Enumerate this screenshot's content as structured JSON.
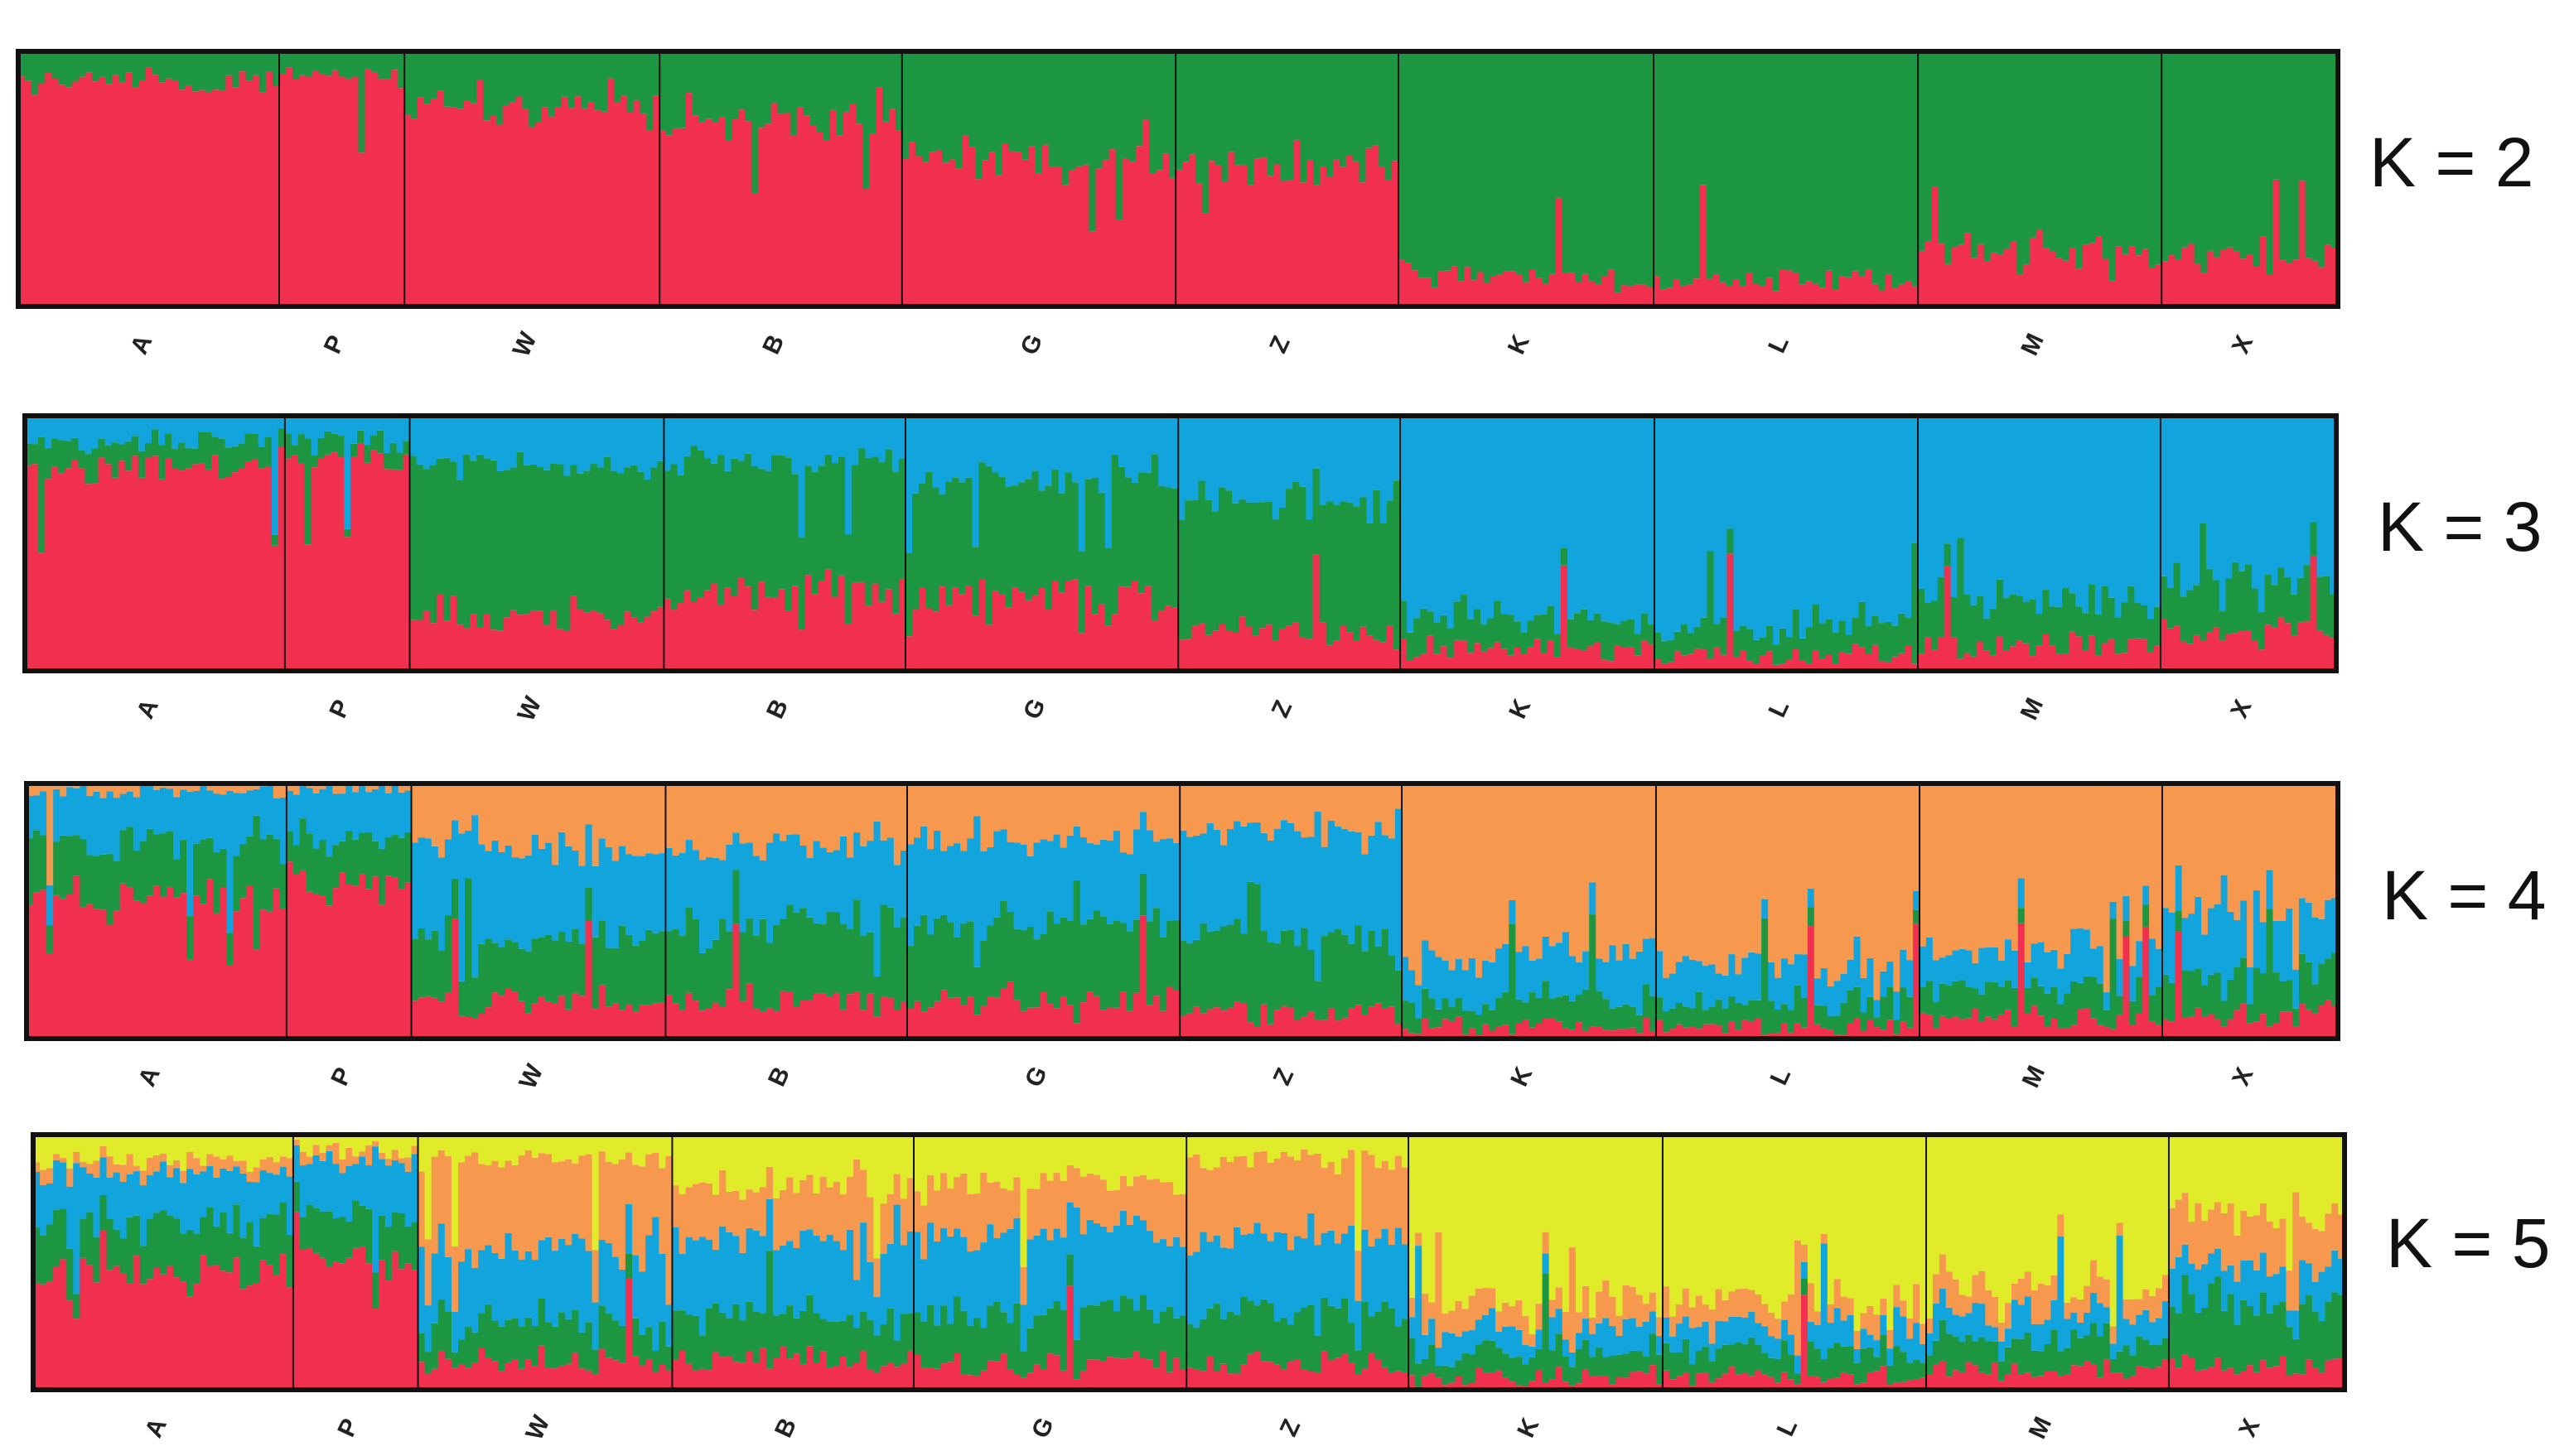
{
  "chart_data": {
    "type": "bar",
    "stacked": true,
    "title": "",
    "xlabel": "",
    "ylabel": "",
    "ylim": [
      0,
      1
    ],
    "populations": [
      "A",
      "P",
      "W",
      "B",
      "G",
      "Z",
      "K",
      "L",
      "M",
      "X"
    ],
    "colors": {
      "red": "#f0304e",
      "green": "#1c9641",
      "blue": "#12a4dc",
      "orange": "#f7984f",
      "yellow": "#e0ec2a"
    },
    "panels": [
      {
        "label": "K = 2",
        "clusters": [
          "red",
          "green"
        ],
        "population_mean_membership": {
          "A": [
            0.88,
            0.12
          ],
          "P": [
            0.9,
            0.1
          ],
          "W": [
            0.78,
            0.22
          ],
          "B": [
            0.72,
            0.28
          ],
          "G": [
            0.58,
            0.42
          ],
          "Z": [
            0.55,
            0.45
          ],
          "K": [
            0.12,
            0.88
          ],
          "L": [
            0.1,
            0.9
          ],
          "M": [
            0.22,
            0.78
          ],
          "X": [
            0.2,
            0.8
          ]
        }
      },
      {
        "label": "K = 3",
        "clusters": [
          "red",
          "green",
          "blue"
        ],
        "population_mean_membership": {
          "A": [
            0.8,
            0.1,
            0.1
          ],
          "P": [
            0.82,
            0.08,
            0.1
          ],
          "W": [
            0.22,
            0.58,
            0.2
          ],
          "B": [
            0.3,
            0.52,
            0.18
          ],
          "G": [
            0.3,
            0.45,
            0.25
          ],
          "Z": [
            0.15,
            0.5,
            0.35
          ],
          "K": [
            0.08,
            0.12,
            0.8
          ],
          "L": [
            0.06,
            0.12,
            0.82
          ],
          "M": [
            0.1,
            0.18,
            0.72
          ],
          "X": [
            0.15,
            0.22,
            0.63
          ]
        }
      },
      {
        "label": "K = 4",
        "clusters": [
          "red",
          "green",
          "blue",
          "orange"
        ],
        "population_mean_membership": {
          "A": [
            0.55,
            0.22,
            0.2,
            0.03
          ],
          "P": [
            0.6,
            0.18,
            0.2,
            0.02
          ],
          "W": [
            0.15,
            0.25,
            0.35,
            0.25
          ],
          "B": [
            0.15,
            0.3,
            0.3,
            0.25
          ],
          "G": [
            0.15,
            0.3,
            0.32,
            0.23
          ],
          "Z": [
            0.1,
            0.28,
            0.42,
            0.2
          ],
          "K": [
            0.05,
            0.1,
            0.18,
            0.67
          ],
          "L": [
            0.05,
            0.1,
            0.15,
            0.7
          ],
          "M": [
            0.08,
            0.12,
            0.15,
            0.65
          ],
          "X": [
            0.1,
            0.15,
            0.25,
            0.5
          ]
        }
      },
      {
        "label": "K = 5",
        "clusters": [
          "red",
          "green",
          "blue",
          "orange",
          "yellow"
        ],
        "population_mean_membership": {
          "A": [
            0.45,
            0.2,
            0.2,
            0.05,
            0.1
          ],
          "P": [
            0.5,
            0.18,
            0.2,
            0.05,
            0.07
          ],
          "W": [
            0.12,
            0.15,
            0.28,
            0.35,
            0.1
          ],
          "B": [
            0.12,
            0.18,
            0.3,
            0.2,
            0.2
          ],
          "G": [
            0.1,
            0.2,
            0.3,
            0.2,
            0.2
          ],
          "Z": [
            0.1,
            0.2,
            0.3,
            0.3,
            0.1
          ],
          "K": [
            0.05,
            0.1,
            0.1,
            0.1,
            0.65
          ],
          "L": [
            0.05,
            0.1,
            0.1,
            0.1,
            0.65
          ],
          "M": [
            0.08,
            0.12,
            0.1,
            0.1,
            0.6
          ],
          "X": [
            0.1,
            0.25,
            0.15,
            0.2,
            0.3
          ]
        }
      }
    ]
  }
}
